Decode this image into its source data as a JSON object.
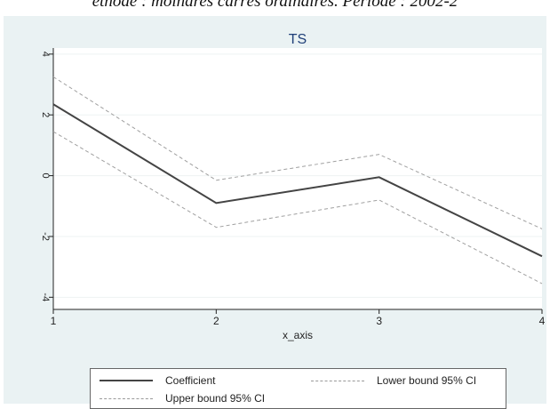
{
  "caption": "ethode : moindres carrés ordinaires. Période : 2002-2",
  "chart_data": {
    "type": "line",
    "title": "TS",
    "xlabel": "x_axis",
    "ylabel": "",
    "x": [
      1,
      2,
      3,
      4
    ],
    "xlim": [
      1,
      4
    ],
    "ylim": [
      -4.4,
      4.2
    ],
    "xticks": [
      "1",
      "2",
      "3",
      "4"
    ],
    "yticks": [
      "-4",
      "-2",
      "0",
      "2",
      "4"
    ],
    "grid": true,
    "legend_position": "bottom",
    "series": [
      {
        "name": "Coefficient",
        "values": [
          2.35,
          -0.9,
          -0.05,
          -2.65
        ],
        "style": "solid",
        "color": "#444444"
      },
      {
        "name": "Lower bound 95% CI",
        "values": [
          1.45,
          -1.7,
          -0.8,
          -3.55
        ],
        "style": "dashed",
        "color": "#a0a0a0"
      },
      {
        "name": "Upper bound 95% CI",
        "values": [
          3.25,
          -0.15,
          0.7,
          -1.75
        ],
        "style": "dashed",
        "color": "#a0a0a0"
      }
    ]
  }
}
